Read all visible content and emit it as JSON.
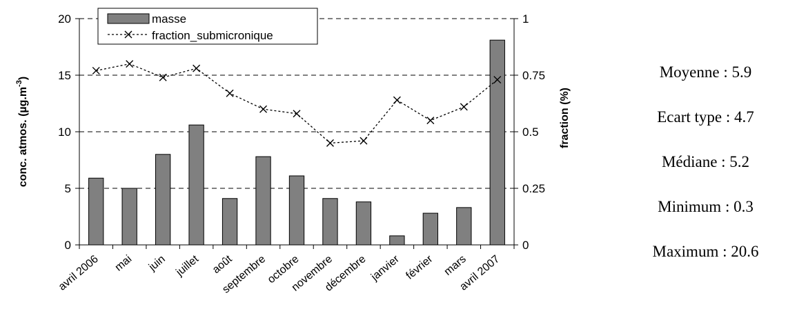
{
  "chart_data": {
    "type": "bar",
    "categories": [
      "avril 2006",
      "mai",
      "juin",
      "juillet",
      "août",
      "septembre",
      "octobre",
      "novembre",
      "décembre",
      "janvier",
      "février",
      "mars",
      "avril 2007"
    ],
    "series": [
      {
        "name": "masse",
        "type": "bar",
        "axis": "left",
        "values": [
          5.9,
          5.0,
          8.0,
          10.6,
          4.1,
          7.8,
          6.1,
          4.1,
          3.8,
          0.8,
          2.8,
          3.3,
          18.1
        ]
      },
      {
        "name": "fraction_submicronique",
        "type": "line",
        "axis": "right",
        "values": [
          0.77,
          0.8,
          0.74,
          0.78,
          0.67,
          0.6,
          0.58,
          0.45,
          0.46,
          0.64,
          0.55,
          0.61,
          0.73
        ]
      }
    ],
    "ylabel": "conc. atmos. (µg.m",
    "ylabel_sup": "-3",
    "ylabel_close": ")",
    "y2label": "fraction (%)",
    "ylim": [
      0,
      20
    ],
    "y2lim": [
      0,
      1
    ],
    "yticks": [
      "0",
      "5",
      "10",
      "15",
      "20"
    ],
    "y2ticks": [
      "0",
      "0.25",
      "0.5",
      "0.75",
      "1"
    ],
    "grid": "horizontal dashed",
    "legend_position": "top-left",
    "colors": {
      "bar": "#808080",
      "line": "#000000"
    }
  },
  "stats": [
    {
      "label": "Moyenne",
      "value": "5.9"
    },
    {
      "label": "Ecart type",
      "value": "4.7"
    },
    {
      "label": "Médiane",
      "value": "5.2"
    },
    {
      "label": "Minimum",
      "value": "0.3"
    },
    {
      "label": "Maximum",
      "value": "20.6"
    }
  ],
  "stat_separator": " : "
}
